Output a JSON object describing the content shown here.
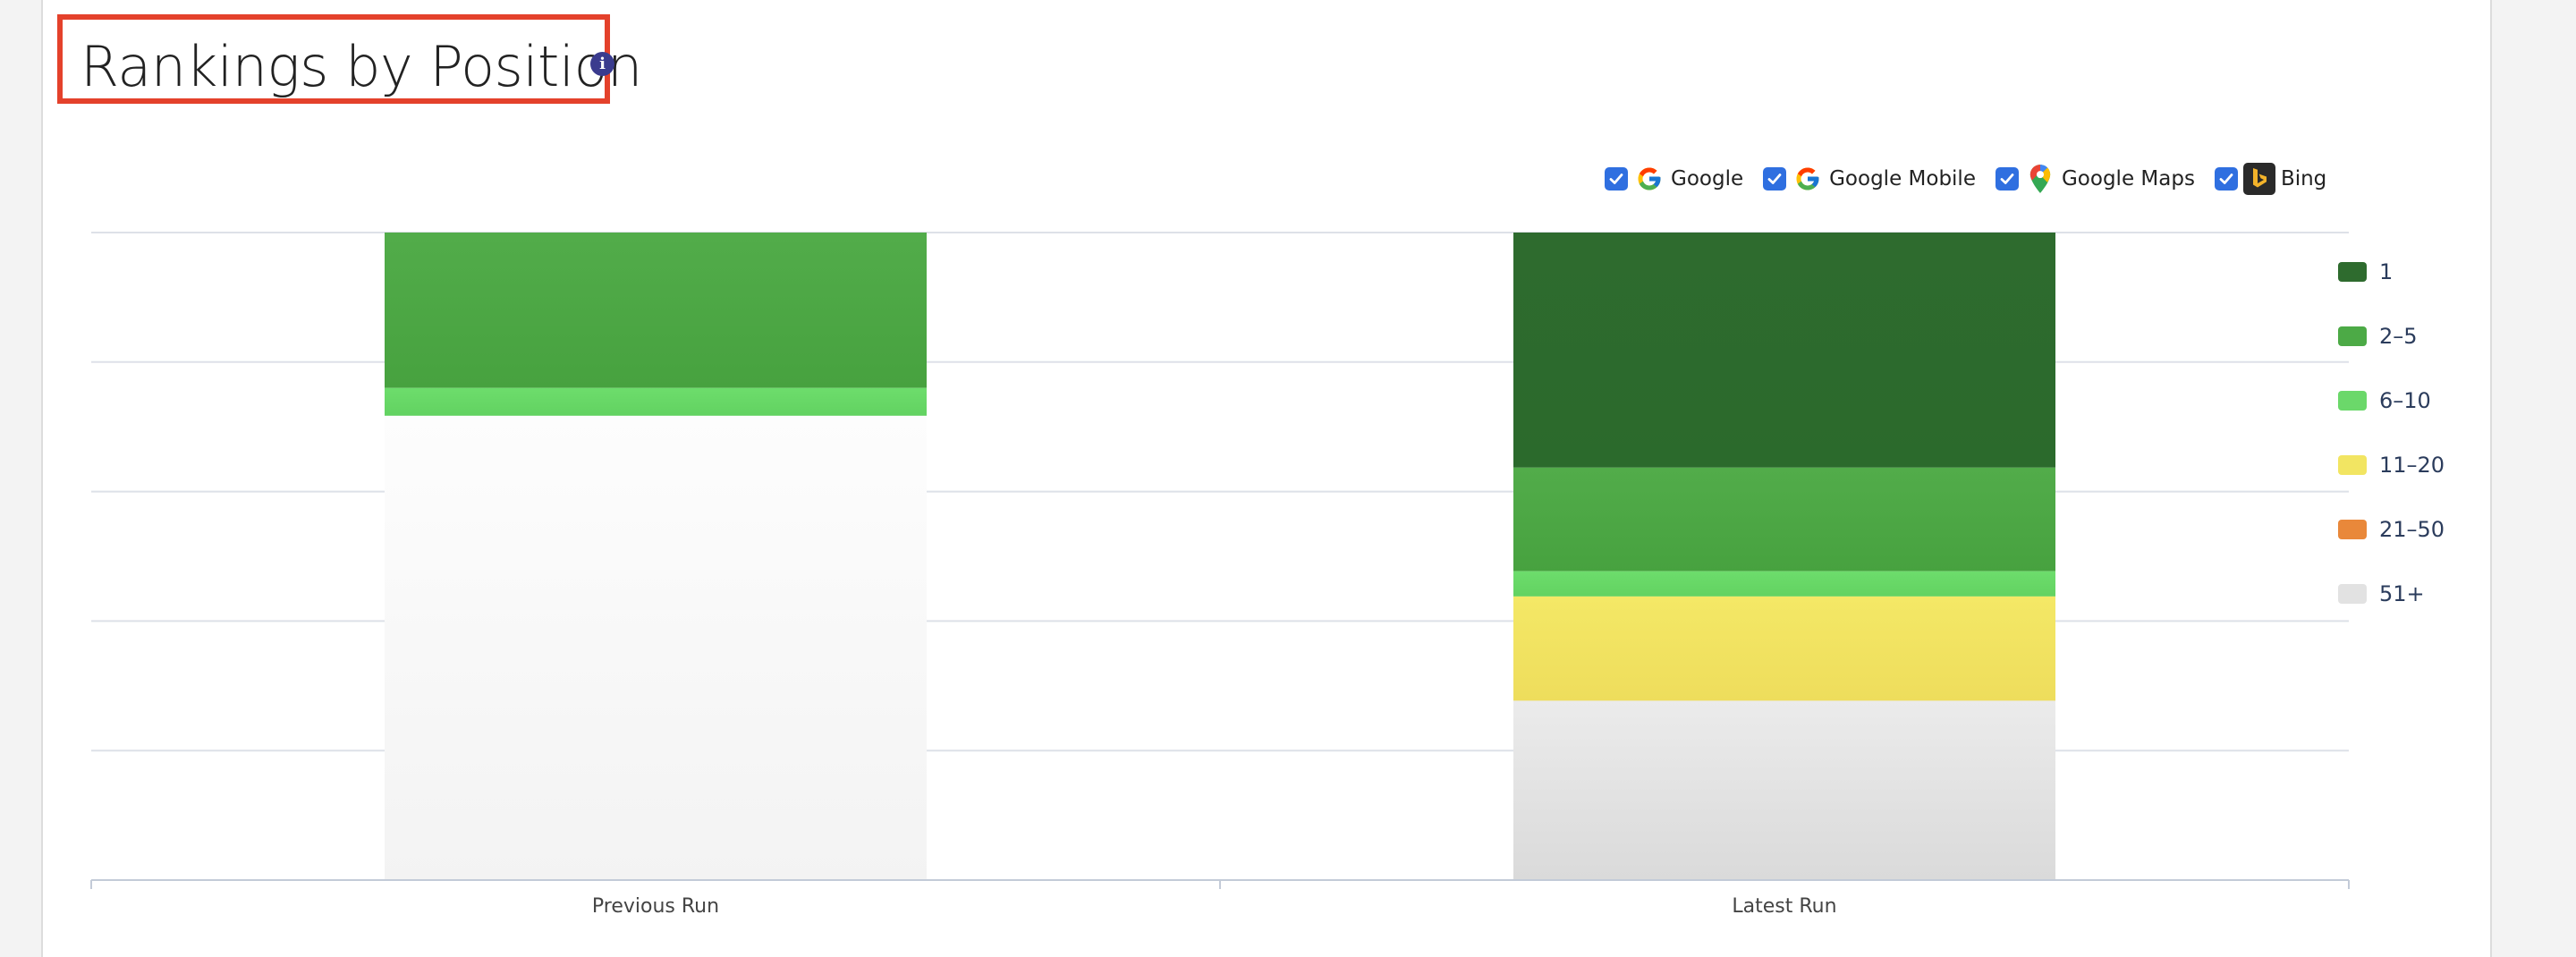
{
  "header": {
    "title": "Rankings by Position",
    "info_glyph": "i"
  },
  "filters": [
    {
      "label": "Google",
      "checked": true,
      "icon": "google-icon"
    },
    {
      "label": "Google Mobile",
      "checked": true,
      "icon": "google-icon"
    },
    {
      "label": "Google Maps",
      "checked": true,
      "icon": "map-pin-icon"
    },
    {
      "label": "Bing",
      "checked": true,
      "icon": "bing-icon"
    }
  ],
  "legend": [
    {
      "label": "1",
      "color": "#2e6b2e"
    },
    {
      "label": "2–5",
      "color": "#4caa46"
    },
    {
      "label": "6–10",
      "color": "#6bd86a"
    },
    {
      "label": "11–20",
      "color": "#f2e562"
    },
    {
      "label": "21–50",
      "color": "#e9883a"
    },
    {
      "label": "51+",
      "color": "#e2e2e2"
    }
  ],
  "chart_data": {
    "type": "bar",
    "stacked": true,
    "percent_stacked": true,
    "categories": [
      "Previous Run",
      "Latest Run"
    ],
    "series": [
      {
        "name": "1",
        "values": [
          0,
          36.3
        ]
      },
      {
        "name": "2–5",
        "values": [
          24.0,
          16.0
        ]
      },
      {
        "name": "6–10",
        "values": [
          4.3,
          3.9
        ]
      },
      {
        "name": "11–20",
        "values": [
          0,
          16.1
        ]
      },
      {
        "name": "21–50",
        "values": [
          0,
          0
        ]
      },
      {
        "name": "51+",
        "values": [
          71.7,
          27.7
        ]
      }
    ],
    "ylim": [
      0,
      100
    ],
    "grid": true,
    "legend_position": "right"
  }
}
